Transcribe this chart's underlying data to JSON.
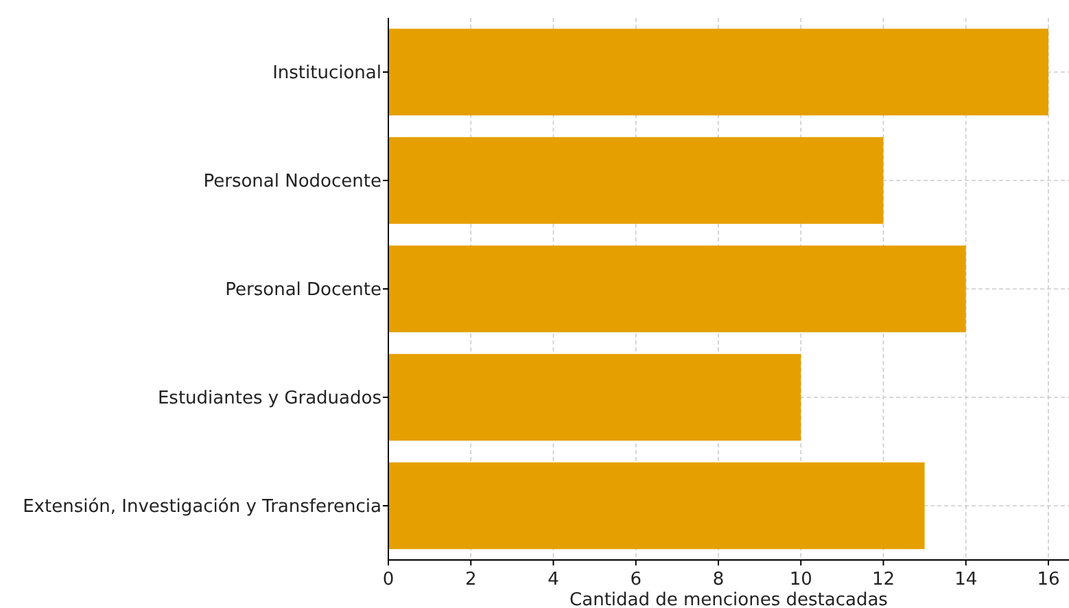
{
  "chart_data": {
    "type": "bar",
    "orientation": "horizontal",
    "xlabel": "Cantidad de menciones destacadas",
    "categories": [
      "Institucional",
      "Personal Nodocente",
      "Personal Docente",
      "Estudiantes y Graduados",
      "Extensión, Investigación y Transferencia"
    ],
    "values": [
      16,
      12,
      14,
      10,
      13
    ],
    "color": "#e5a000",
    "xlim": [
      0,
      16.5
    ],
    "xticks": [
      0,
      2,
      4,
      6,
      8,
      10,
      12,
      14,
      16
    ],
    "grid": true
  }
}
